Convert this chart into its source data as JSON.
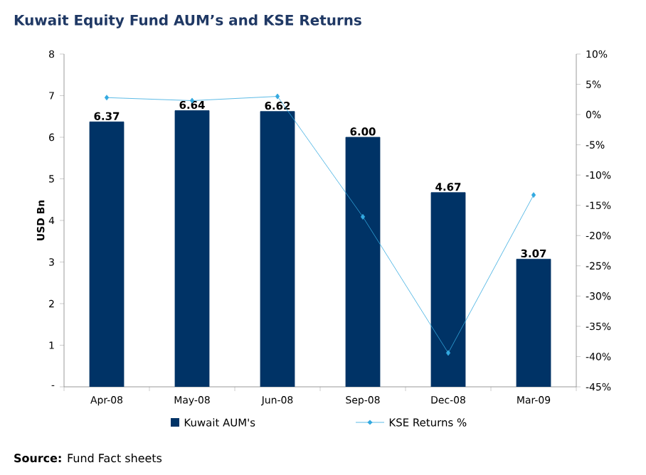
{
  "chart_data": {
    "type": "bar",
    "title": "Kuwait Equity Fund AUM’s and KSE Returns",
    "ylabel": "USD Bn",
    "categories": [
      "Apr-08",
      "May-08",
      "Jun-08",
      "Sep-08",
      "Dec-08",
      "Mar-09"
    ],
    "series": [
      {
        "name": "Kuwait AUM's",
        "color": "#003366",
        "values": [
          6.37,
          6.64,
          6.62,
          6.0,
          4.67,
          3.07
        ],
        "value_labels": [
          "6.37",
          "6.64",
          "6.62",
          "6.00",
          "4.67",
          "3.07"
        ]
      },
      {
        "name": "KSE Returns %",
        "type": "line",
        "axis": "y2",
        "color": "#33a9e0",
        "values": [
          2.8,
          2.3,
          3.0,
          -16.9,
          -39.4,
          -13.3
        ]
      }
    ],
    "ylim": [
      0,
      8
    ],
    "yticks": [
      {
        "value": 0,
        "label": "-"
      },
      1,
      2,
      3,
      4,
      5,
      6,
      7,
      8
    ],
    "y2lim": [
      -45,
      10
    ],
    "y2ticks": [
      {
        "value": -45,
        "label": "-45%"
      },
      {
        "value": -40,
        "label": "-40%"
      },
      {
        "value": -35,
        "label": "-35%"
      },
      {
        "value": -30,
        "label": "-30%"
      },
      {
        "value": -25,
        "label": "-25%"
      },
      {
        "value": -20,
        "label": "-20%"
      },
      {
        "value": -15,
        "label": "-15%"
      },
      {
        "value": -10,
        "label": "-10%"
      },
      {
        "value": -5,
        "label": "-5%"
      },
      {
        "value": 0,
        "label": "0%"
      },
      {
        "value": 5,
        "label": "5%"
      },
      {
        "value": 10,
        "label": "10%"
      }
    ],
    "marker": "diamond",
    "grid": false,
    "legend": "bottom",
    "annotations": [
      "**Source:** Fund Fact sheets"
    ]
  }
}
